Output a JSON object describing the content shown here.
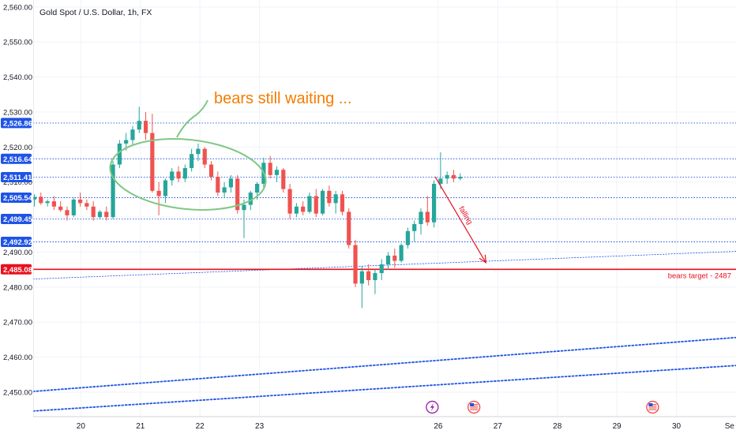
{
  "chart_data": {
    "type": "candlestick",
    "title": "Gold Spot / U.S. Dollar, 1h, FX",
    "colors": {
      "up": "#26a69a",
      "down": "#ef5350",
      "level": "#1e53e5",
      "target": "#e8101e",
      "note": "#f57c00",
      "ellipse": "#81c784"
    },
    "y_axis": {
      "ylim": [
        2443,
        2562
      ],
      "ticks": [
        2450,
        2460,
        2470,
        2480,
        2490,
        2500,
        2510,
        2520,
        2530,
        2540,
        2550,
        2560
      ],
      "tick_labels": [
        "2,450.00",
        "2,460.00",
        "2,470.00",
        "2,480.00",
        "2,490.00",
        "2,500.00",
        "2,510.00",
        "2,520.00",
        "2,530.00",
        "2,540.00",
        "2,550.00",
        "2,560.00"
      ],
      "position": "left"
    },
    "x_axis": {
      "xlim": [
        19.2,
        31.0
      ],
      "ticks": [
        20,
        21,
        22,
        23,
        26,
        27,
        28,
        29,
        30
      ],
      "tick_labels": [
        "20",
        "21",
        "22",
        "23",
        "26",
        "27",
        "28",
        "29",
        "30"
      ],
      "edge_label": "Se"
    },
    "levels": [
      {
        "value": 2526.86,
        "label": "2,526.86"
      },
      {
        "value": 2516.64,
        "label": "2,516.64"
      },
      {
        "value": 2511.41,
        "label": "2,511.41"
      },
      {
        "value": 2505.54,
        "label": "2,505.54"
      },
      {
        "value": 2499.45,
        "label": "2,499.45"
      },
      {
        "value": 2492.92,
        "label": "2,492.92"
      }
    ],
    "target": {
      "value": 2485.08,
      "label": "2,485.08",
      "text": "bears target - 2487"
    },
    "annotations": {
      "note_text": "bears still waiting ...",
      "falling_text": "falling",
      "arrow": {
        "from": [
          25.95,
          2511.5
        ],
        "to": [
          26.8,
          2487.0
        ]
      }
    },
    "trendlines": [
      {
        "from": [
          19.2,
          2482.3
        ],
        "to": [
          31.0,
          2490.2
        ],
        "style": "dotted-thin"
      },
      {
        "from": [
          19.2,
          2450.2
        ],
        "to": [
          31.0,
          2465.6
        ],
        "style": "dotted-thick"
      },
      {
        "from": [
          19.2,
          2444.6
        ],
        "to": [
          31.0,
          2457.6
        ],
        "style": "dotted-thick"
      }
    ],
    "event_markers": [
      {
        "x": 25.9,
        "type": "lightning"
      },
      {
        "x": 26.6,
        "type": "us-flag"
      },
      {
        "x": 29.6,
        "type": "us-flag"
      }
    ],
    "candles": [
      [
        19.22,
        2505.0,
        2506.5,
        2503.0,
        2505.8
      ],
      [
        19.33,
        2505.8,
        2507.0,
        2503.5,
        2504.0
      ],
      [
        19.44,
        2504.0,
        2505.0,
        2503.0,
        2504.5
      ],
      [
        19.55,
        2504.5,
        2506.0,
        2502.0,
        2503.0
      ],
      [
        19.66,
        2503.0,
        2504.5,
        2501.5,
        2502.0
      ],
      [
        19.77,
        2502.0,
        2503.0,
        2499.0,
        2500.5
      ],
      [
        19.88,
        2500.5,
        2505.5,
        2500.0,
        2505.0
      ],
      [
        19.99,
        2505.0,
        2507.0,
        2503.0,
        2504.0
      ],
      [
        20.1,
        2504.0,
        2505.0,
        2502.0,
        2503.0
      ],
      [
        20.21,
        2503.0,
        2504.5,
        2499.0,
        2500.0
      ],
      [
        20.32,
        2500.0,
        2502.0,
        2499.5,
        2501.5
      ],
      [
        20.43,
        2501.5,
        2503.0,
        2499.0,
        2500.0
      ],
      [
        20.54,
        2500.0,
        2516.0,
        2499.5,
        2515.0
      ],
      [
        20.65,
        2515.0,
        2522.0,
        2514.0,
        2521.0
      ],
      [
        20.76,
        2521.0,
        2524.0,
        2519.0,
        2522.0
      ],
      [
        20.87,
        2522.0,
        2526.0,
        2520.5,
        2525.0
      ],
      [
        20.98,
        2525.0,
        2531.5,
        2524.0,
        2527.5
      ],
      [
        21.09,
        2527.5,
        2530.0,
        2522.0,
        2524.0
      ],
      [
        21.2,
        2524.0,
        2529.5,
        2507.0,
        2507.5
      ],
      [
        21.31,
        2507.5,
        2510.0,
        2500.5,
        2506.0
      ],
      [
        21.42,
        2506.0,
        2511.0,
        2504.0,
        2510.5
      ],
      [
        21.53,
        2510.5,
        2514.0,
        2509.0,
        2513.0
      ],
      [
        21.64,
        2513.0,
        2514.5,
        2510.0,
        2511.0
      ],
      [
        21.75,
        2511.0,
        2515.0,
        2510.0,
        2514.0
      ],
      [
        21.86,
        2514.0,
        2519.5,
        2513.0,
        2518.0
      ],
      [
        21.97,
        2518.0,
        2521.0,
        2516.0,
        2519.5
      ],
      [
        22.08,
        2519.5,
        2520.0,
        2514.0,
        2515.0
      ],
      [
        22.19,
        2515.0,
        2516.0,
        2510.5,
        2511.5
      ],
      [
        22.3,
        2511.5,
        2513.0,
        2506.0,
        2507.0
      ],
      [
        22.41,
        2507.0,
        2510.0,
        2505.5,
        2508.5
      ],
      [
        22.52,
        2508.5,
        2512.0,
        2507.0,
        2511.0
      ],
      [
        22.63,
        2511.0,
        2512.0,
        2501.0,
        2502.0
      ],
      [
        22.74,
        2502.0,
        2505.0,
        2494.0,
        2503.5
      ],
      [
        22.85,
        2503.5,
        2507.5,
        2502.0,
        2507.0
      ],
      [
        22.96,
        2507.0,
        2510.0,
        2505.0,
        2509.5
      ],
      [
        23.07,
        2509.5,
        2517.0,
        2508.0,
        2515.5
      ],
      [
        23.18,
        2515.5,
        2517.5,
        2511.0,
        2512.0
      ],
      [
        23.29,
        2512.0,
        2514.5,
        2510.0,
        2513.5
      ],
      [
        23.4,
        2513.5,
        2514.0,
        2507.0,
        2508.0
      ],
      [
        23.51,
        2508.0,
        2509.5,
        2499.5,
        2501.0
      ],
      [
        23.62,
        2501.0,
        2504.0,
        2500.0,
        2503.0
      ],
      [
        23.73,
        2503.0,
        2504.5,
        2500.5,
        2501.5
      ],
      [
        23.84,
        2501.5,
        2507.0,
        2501.0,
        2506.0
      ],
      [
        23.95,
        2506.0,
        2508.0,
        2500.0,
        2501.0
      ],
      [
        24.06,
        2501.0,
        2508.0,
        2500.5,
        2507.5
      ],
      [
        24.17,
        2507.5,
        2509.0,
        2503.0,
        2504.0
      ],
      [
        24.28,
        2504.0,
        2507.5,
        2501.0,
        2506.5
      ],
      [
        24.39,
        2506.5,
        2507.5,
        2500.5,
        2501.5
      ],
      [
        24.5,
        2501.5,
        2502.5,
        2491.0,
        2492.0
      ],
      [
        24.61,
        2492.0,
        2493.5,
        2480.0,
        2481.0
      ],
      [
        24.72,
        2481.0,
        2486.0,
        2474.0,
        2484.5
      ],
      [
        24.83,
        2484.5,
        2486.5,
        2480.5,
        2482.0
      ],
      [
        24.94,
        2482.0,
        2485.0,
        2478.0,
        2484.0
      ],
      [
        25.05,
        2484.0,
        2488.0,
        2482.0,
        2486.5
      ],
      [
        25.16,
        2486.5,
        2490.0,
        2485.0,
        2489.0
      ],
      [
        25.27,
        2489.0,
        2491.0,
        2485.5,
        2487.5
      ],
      [
        25.38,
        2487.5,
        2492.5,
        2487.0,
        2492.0
      ],
      [
        25.49,
        2492.0,
        2497.0,
        2491.0,
        2496.0
      ],
      [
        25.6,
        2496.0,
        2499.0,
        2493.0,
        2498.0
      ],
      [
        25.71,
        2498.0,
        2502.5,
        2495.0,
        2501.5
      ],
      [
        25.82,
        2501.5,
        2506.0,
        2497.5,
        2498.5
      ],
      [
        25.93,
        2498.5,
        2510.5,
        2497.0,
        2509.5
      ],
      [
        26.04,
        2509.5,
        2518.5,
        2508.0,
        2511.0
      ],
      [
        26.15,
        2511.0,
        2513.0,
        2509.5,
        2512.0
      ],
      [
        26.26,
        2512.0,
        2513.5,
        2510.0,
        2511.0
      ],
      [
        26.37,
        2511.0,
        2512.5,
        2510.5,
        2511.5
      ]
    ]
  }
}
